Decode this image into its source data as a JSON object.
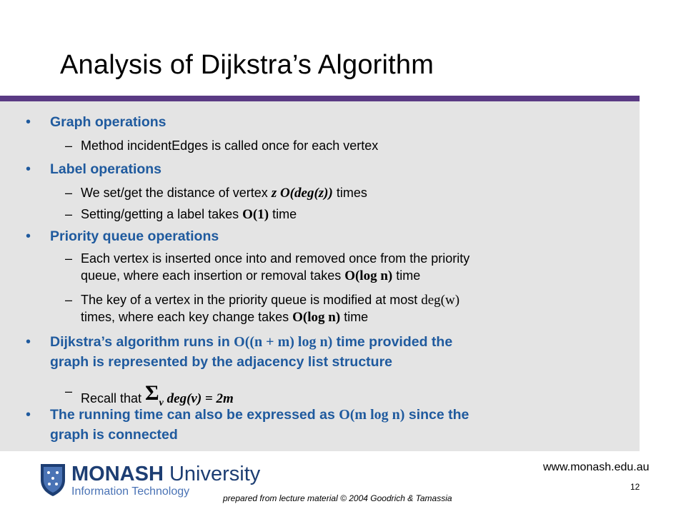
{
  "slide": {
    "title": "Analysis of Dijkstra’s Algorithm",
    "bullets": [
      {
        "text": "Graph operations"
      },
      {
        "text": "Label operations"
      },
      {
        "text": "Priority queue operations"
      },
      {
        "text_pre": "Dijkstra’s algorithm runs in ",
        "math": "O((n + m) log n)",
        "text_post": " time provided the",
        "text_line2": "graph is represented by the adjacency list structure"
      },
      {
        "text_pre": "The running time can also be expressed as ",
        "math": "O(m log n)",
        "text_post": " since the",
        "text_line2": "graph is connected"
      }
    ],
    "subs": {
      "s1": "Method incidentEdges is called once for each vertex",
      "s2_pre": "We set/get the distance of vertex ",
      "s2_math": "z O(deg(z))",
      "s2_post": " times",
      "s3_pre": "Setting/getting a label takes ",
      "s3_math": "O(1)",
      "s3_post": " time",
      "s4_line1": "Each vertex is inserted once into and removed once from the priority",
      "s4_line2_pre": "queue, where each insertion or removal takes ",
      "s4_math": "O(log n)",
      "s4_post": " time",
      "s5_line1_pre": "The key of a vertex in the priority queue is modified at most ",
      "s5_math1": "deg(w)",
      "s5_line2_pre": "times, where each key change takes ",
      "s5_math2": "O(log n)",
      "s5_post": " time",
      "s6_pre": "Recall that ",
      "s6_sigma": "Σ",
      "s6_sub": "v",
      "s6_math": " deg(v) = 2m"
    },
    "bullet_char": "•",
    "dash_char": "–"
  },
  "footer": {
    "url": "www.monash.edu.au",
    "page_number": "12",
    "credit": "prepared from lecture material © 2004 Goodrich & Tamassia",
    "logo_name_bold": "MONASH",
    "logo_name_rest": " University",
    "logo_sub": "Information Technology"
  },
  "colors": {
    "accent_purple": "#5a3a84",
    "bullet_blue": "#1f5a9e",
    "panel_gray": "#e4e4e4"
  }
}
